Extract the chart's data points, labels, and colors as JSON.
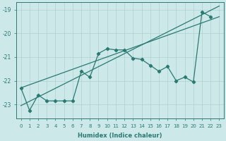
{
  "xlabel": "Humidex (Indice chaleur)",
  "ylabel": "",
  "xlim": [
    -0.5,
    23.5
  ],
  "ylim": [
    -23.6,
    -18.7
  ],
  "yticks": [
    -23,
    -22,
    -21,
    -20,
    -19
  ],
  "xticks": [
    0,
    1,
    2,
    3,
    4,
    5,
    6,
    7,
    8,
    9,
    10,
    11,
    12,
    13,
    14,
    15,
    16,
    17,
    18,
    19,
    20,
    21,
    22,
    23
  ],
  "bg_color": "#cce8e8",
  "grid_color": "#b0d0d0",
  "line_color": "#2a7a72",
  "line1_x": [
    0,
    23
  ],
  "line1_y": [
    -22.3,
    -19.3
  ],
  "line2_x": [
    0,
    23
  ],
  "line2_y": [
    -23.05,
    -18.85
  ],
  "line3_x": [
    0,
    1,
    2,
    3,
    4,
    5,
    6,
    7,
    8,
    9,
    10,
    11,
    12,
    13,
    14,
    15,
    16,
    17,
    18,
    19,
    20,
    21,
    22,
    23
  ],
  "line3_y": [
    -22.3,
    -23.25,
    -22.6,
    -22.85,
    -22.85,
    -22.85,
    -22.85,
    -21.6,
    -21.85,
    -20.85,
    -20.65,
    -20.7,
    -20.7,
    -21.05,
    -21.1,
    -21.35,
    -21.6,
    -21.4,
    -22.0,
    -21.85,
    -22.05,
    -19.1,
    -19.3,
    null
  ]
}
